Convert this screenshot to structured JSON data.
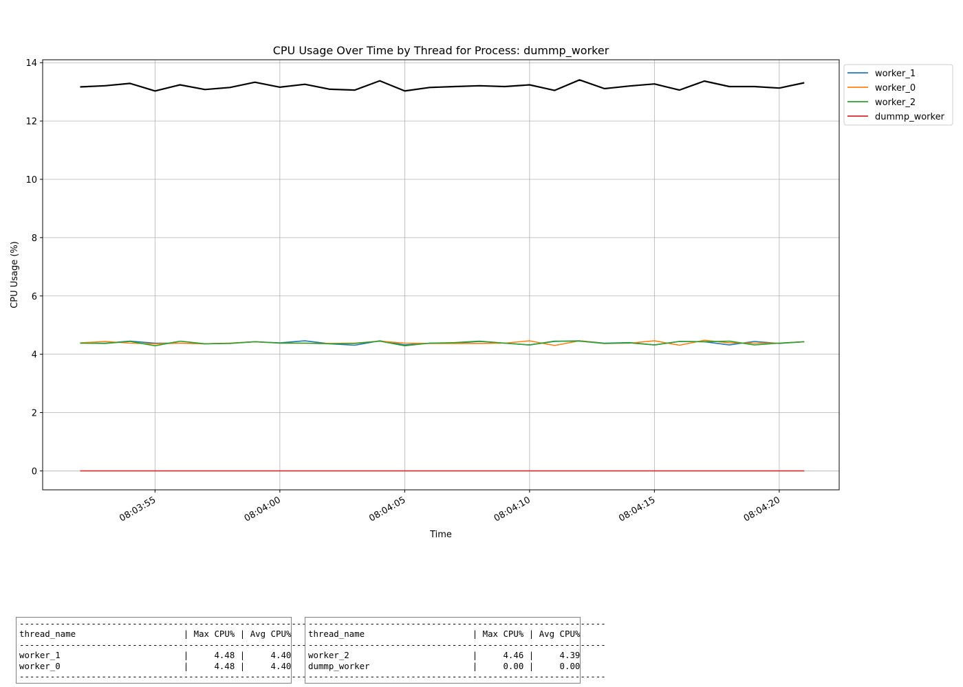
{
  "chart_data": {
    "type": "line",
    "title": "CPU Usage Over Time by Thread for Process: dummp_worker",
    "xlabel": "Time",
    "ylabel": "CPU Usage (%)",
    "ylim": [
      -0.65,
      14.1
    ],
    "xlim": [
      "08:03:50.5",
      "08:04:22.4"
    ],
    "x": [
      "08:03:52",
      "08:03:53",
      "08:03:54",
      "08:03:55",
      "08:03:56",
      "08:03:57",
      "08:03:58",
      "08:03:59",
      "08:04:00",
      "08:04:01",
      "08:04:02",
      "08:04:03",
      "08:04:04",
      "08:04:05",
      "08:04:06",
      "08:04:07",
      "08:04:08",
      "08:04:09",
      "08:04:10",
      "08:04:11",
      "08:04:12",
      "08:04:13",
      "08:04:14",
      "08:04:15",
      "08:04:16",
      "08:04:17",
      "08:04:18",
      "08:04:19",
      "08:04:20",
      "08:04:21"
    ],
    "yticks": [
      0,
      2,
      4,
      6,
      8,
      10,
      12,
      14
    ],
    "xticks": [
      "08:03:55",
      "08:04:00",
      "08:04:05",
      "08:04:10",
      "08:04:15",
      "08:04:20"
    ],
    "grid": true,
    "legend_position": "outside-top-right",
    "series": [
      {
        "name": "worker_1",
        "color": "#1f77b4",
        "values": [
          4.38,
          4.38,
          4.45,
          4.38,
          4.38,
          4.36,
          4.38,
          4.43,
          4.39,
          4.46,
          4.36,
          4.31,
          4.46,
          4.32,
          4.38,
          4.38,
          4.44,
          4.38,
          4.32,
          4.44,
          4.46,
          4.38,
          4.4,
          4.32,
          4.44,
          4.43,
          4.32,
          4.44,
          4.37,
          4.43
        ]
      },
      {
        "name": "worker_0",
        "color": "#ff7f0e",
        "values": [
          4.39,
          4.44,
          4.38,
          4.36,
          4.38,
          4.36,
          4.38,
          4.43,
          4.38,
          4.38,
          4.37,
          4.38,
          4.45,
          4.38,
          4.37,
          4.37,
          4.37,
          4.38,
          4.46,
          4.3,
          4.46,
          4.37,
          4.38,
          4.46,
          4.31,
          4.48,
          4.39,
          4.38,
          4.38,
          4.43
        ]
      },
      {
        "name": "worker_2",
        "color": "#2ca02c",
        "values": [
          4.38,
          4.37,
          4.44,
          4.29,
          4.45,
          4.36,
          4.37,
          4.43,
          4.38,
          4.38,
          4.36,
          4.37,
          4.45,
          4.29,
          4.38,
          4.4,
          4.45,
          4.38,
          4.32,
          4.45,
          4.45,
          4.37,
          4.39,
          4.32,
          4.44,
          4.43,
          4.45,
          4.32,
          4.38,
          4.43
        ]
      },
      {
        "name": "dummp_worker",
        "color": "#d62728",
        "values": [
          0,
          0,
          0,
          0,
          0,
          0,
          0,
          0,
          0,
          0,
          0,
          0,
          0,
          0,
          0,
          0,
          0,
          0,
          0,
          0,
          0,
          0,
          0,
          0,
          0,
          0,
          0,
          0,
          0,
          0
        ]
      },
      {
        "name": "",
        "color": "#000000",
        "values": [
          13.17,
          13.21,
          13.29,
          13.03,
          13.24,
          13.08,
          13.15,
          13.33,
          13.16,
          13.26,
          13.09,
          13.06,
          13.38,
          13.03,
          13.15,
          13.18,
          13.21,
          13.18,
          13.24,
          13.05,
          13.41,
          13.11,
          13.2,
          13.27,
          13.06,
          13.37,
          13.18,
          13.18,
          13.13,
          13.31
        ]
      }
    ]
  },
  "tables": [
    {
      "lines": [
        "----------------------------------------------------------",
        "thread_name                     | Max CPU% | Avg CPU%",
        "----------------------------------------------------------",
        "worker_1                        |     4.48 |     4.40",
        "worker_0                        |     4.48 |     4.40",
        "----------------------------------------------------------"
      ]
    },
    {
      "lines": [
        "----------------------------------------------------------",
        "thread_name                     | Max CPU% | Avg CPU%",
        "----------------------------------------------------------",
        "worker_2                        |     4.46 |     4.39",
        "dummp_worker                    |     0.00 |     0.00",
        "----------------------------------------------------------"
      ]
    }
  ]
}
